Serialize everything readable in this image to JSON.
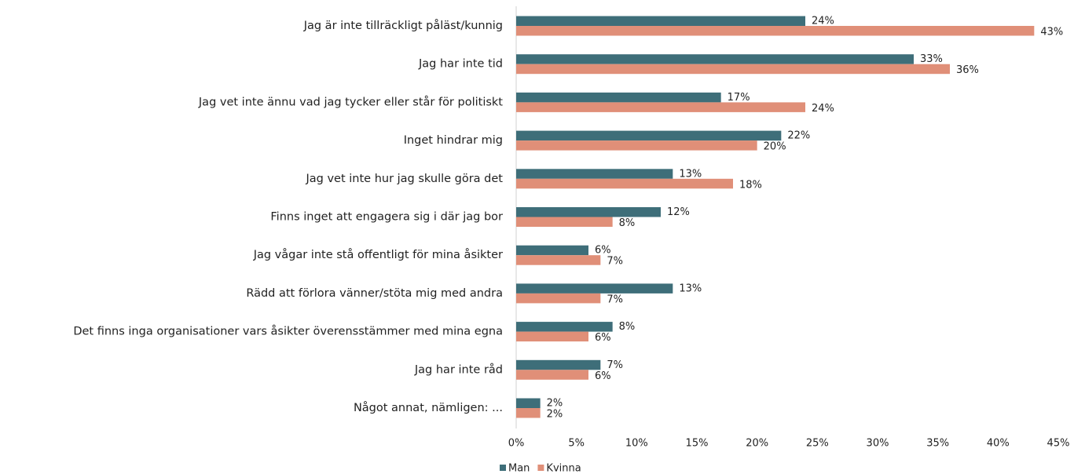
{
  "chart_data": {
    "type": "hbar",
    "categories": [
      "Jag är inte tillräckligt påläst/kunnig",
      "Jag har inte tid",
      "Jag vet inte ännu vad jag tycker eller står för politiskt",
      "Inget hindrar mig",
      "Jag vet inte hur jag skulle göra det",
      "Finns inget att engagera sig i där jag bor",
      "Jag vågar inte stå offentligt för mina åsikter",
      "Rädd att förlora vänner/stöta mig med andra",
      "Det finns inga organisationer vars åsikter överensstämmer med mina egna",
      "Jag har inte råd",
      "Något annat, nämligen: ..."
    ],
    "series": [
      {
        "name": "Man",
        "color": "#3e6e79",
        "values": [
          24,
          33,
          17,
          22,
          13,
          12,
          6,
          13,
          8,
          7,
          2
        ],
        "value_labels": [
          "24%",
          "33%",
          "17%",
          "22%",
          "13%",
          "12%",
          "6%",
          "13%",
          "8%",
          "7%",
          "2%"
        ]
      },
      {
        "name": "Kvinna",
        "color": "#e08f78",
        "values": [
          43,
          36,
          24,
          20,
          18,
          8,
          7,
          7,
          6,
          6,
          2
        ],
        "value_labels": [
          "43%",
          "36%",
          "24%",
          "20%",
          "18%",
          "8%",
          "7%",
          "7%",
          "6%",
          "6%",
          "2%"
        ]
      }
    ],
    "xlim": [
      0,
      45
    ],
    "xticks": [
      {
        "value": 0,
        "label": "0%"
      },
      {
        "value": 5,
        "label": "5%"
      },
      {
        "value": 10,
        "label": "10%"
      },
      {
        "value": 15,
        "label": "15%"
      },
      {
        "value": 20,
        "label": "20%"
      },
      {
        "value": 25,
        "label": "25%"
      },
      {
        "value": 30,
        "label": "30%"
      },
      {
        "value": 35,
        "label": "35%"
      },
      {
        "value": 40,
        "label": "40%"
      },
      {
        "value": 45,
        "label": "45%"
      }
    ],
    "grid": false,
    "legend": "bottom"
  }
}
